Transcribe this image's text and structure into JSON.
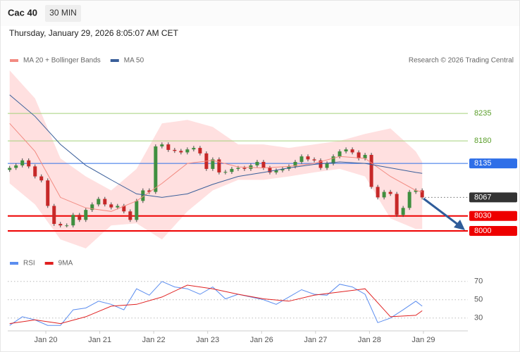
{
  "header": {
    "symbol": "Cac 40",
    "interval": "30 MIN",
    "timestamp": "Thursday, January 29, 2026 8:05:07 AM CET",
    "credit": "Research © 2026 Trading Central"
  },
  "chart_data": [
    {
      "type": "candlestick",
      "xlim": [
        -0.3,
        72.2
      ],
      "ylim": [
        7962,
        8328
      ],
      "up_color": "#3f8f3f",
      "down_color": "#c62828",
      "candles": {
        "open": [
          8122,
          8126,
          8131,
          8141,
          8129,
          8109,
          8101,
          8050,
          8014,
          8011,
          8011,
          8032,
          8022,
          8042,
          8053,
          8064,
          8053,
          8047,
          8050,
          8039,
          8022,
          8060,
          8081,
          8078,
          8169,
          8173,
          8162,
          8160,
          8157,
          8163,
          8166,
          8155,
          8124,
          8143,
          8117,
          8118,
          8124,
          8126,
          8124,
          8131,
          8138,
          8126,
          8117,
          8121,
          8124,
          8129,
          8138,
          8149,
          8143,
          8141,
          8126,
          8135,
          8149,
          8159,
          8163,
          8157,
          8145,
          8152,
          8088,
          8067,
          8078,
          8074,
          8032,
          8046,
          8078,
          8081
        ],
        "high": [
          8130,
          8135,
          8145,
          8145,
          8133,
          8113,
          8105,
          8054,
          8018,
          8015,
          8036,
          8036,
          8046,
          8057,
          8068,
          8068,
          8057,
          8054,
          8054,
          8043,
          8064,
          8085,
          8085,
          8173,
          8177,
          8177,
          8166,
          8164,
          8167,
          8170,
          8170,
          8159,
          8147,
          8147,
          8122,
          8128,
          8130,
          8130,
          8135,
          8142,
          8142,
          8130,
          8125,
          8128,
          8133,
          8142,
          8153,
          8153,
          8147,
          8145,
          8139,
          8153,
          8163,
          8167,
          8167,
          8161,
          8156,
          8156,
          8092,
          8082,
          8082,
          8078,
          8050,
          8082,
          8085,
          8085
        ],
        "low": [
          8118,
          8122,
          8127,
          8125,
          8105,
          8097,
          8046,
          8010,
          8007,
          8007,
          8007,
          8018,
          8018,
          8038,
          8049,
          8049,
          8043,
          8043,
          8035,
          8018,
          8018,
          8056,
          8074,
          8074,
          8165,
          8158,
          8156,
          8153,
          8153,
          8159,
          8151,
          8120,
          8120,
          8113,
          8113,
          8114,
          8120,
          8120,
          8120,
          8127,
          8122,
          8113,
          8113,
          8117,
          8120,
          8125,
          8134,
          8139,
          8137,
          8122,
          8122,
          8131,
          8145,
          8155,
          8153,
          8141,
          8141,
          8084,
          8063,
          8063,
          8070,
          8028,
          8028,
          8042,
          8074,
          8063
        ],
        "close": [
          8126,
          8131,
          8141,
          8129,
          8109,
          8101,
          8050,
          8014,
          8011,
          8011,
          8032,
          8022,
          8042,
          8053,
          8064,
          8053,
          8047,
          8050,
          8039,
          8022,
          8060,
          8081,
          8078,
          8169,
          8173,
          8162,
          8160,
          8157,
          8163,
          8166,
          8155,
          8124,
          8143,
          8117,
          8118,
          8124,
          8126,
          8124,
          8131,
          8138,
          8126,
          8117,
          8121,
          8124,
          8129,
          8138,
          8149,
          8143,
          8141,
          8126,
          8135,
          8149,
          8159,
          8163,
          8157,
          8145,
          8152,
          8088,
          8067,
          8078,
          8074,
          8032,
          8046,
          8078,
          8081,
          8067
        ]
      },
      "series": [
        {
          "name": "MA 20 + Bollinger Bands",
          "color": "#f28b82",
          "band_color": "#ffd6d6",
          "x": [
            0,
            4,
            8,
            12,
            16,
            20,
            24,
            28,
            32,
            36,
            40,
            44,
            48,
            52,
            56,
            60,
            64,
            65
          ],
          "values": [
            8215,
            8159,
            8067,
            8046,
            8039,
            8060,
            8095,
            8135,
            8141,
            8128,
            8126,
            8129,
            8135,
            8149,
            8145,
            8109,
            8081,
            8078
          ],
          "upper": [
            8321,
            8265,
            8145,
            8109,
            8081,
            8124,
            8215,
            8222,
            8208,
            8173,
            8173,
            8166,
            8173,
            8180,
            8194,
            8205,
            8159,
            8138
          ],
          "lower": [
            8095,
            8053,
            7983,
            7965,
            8011,
            8015,
            7983,
            8039,
            8081,
            8102,
            8102,
            8109,
            8117,
            8124,
            8109,
            8025,
            8004,
            8004
          ]
        },
        {
          "name": "MA 50",
          "color": "#3a5f9a",
          "x": [
            0,
            4,
            8,
            12,
            16,
            20,
            24,
            28,
            32,
            36,
            40,
            44,
            48,
            52,
            56,
            60,
            64,
            65
          ],
          "values": [
            8272,
            8229,
            8173,
            8131,
            8102,
            8074,
            8067,
            8074,
            8093,
            8109,
            8117,
            8126,
            8133,
            8138,
            8135,
            8126,
            8117,
            8115
          ]
        }
      ],
      "levels": [
        {
          "value": 8235,
          "color": "#a5d17a",
          "boxed": false,
          "style": "solid"
        },
        {
          "value": 8180,
          "color": "#a5d17a",
          "boxed": false,
          "style": "solid"
        },
        {
          "value": 8135,
          "color": "#2f6fe8",
          "boxed": true,
          "style": "solid"
        },
        {
          "value": 8067,
          "color": "#333333",
          "boxed": true,
          "style": "dotted"
        },
        {
          "value": 8030,
          "color": "#ee0000",
          "boxed": true,
          "style": "thick"
        },
        {
          "value": 8000,
          "color": "#ee0000",
          "boxed": true,
          "style": "thick"
        }
      ]
    },
    {
      "type": "line",
      "xlim": [
        -0.3,
        72.2
      ],
      "ylim": [
        16,
        76
      ],
      "yticks": [
        30,
        50,
        70
      ],
      "grid": true,
      "xticks": [
        {
          "value": 5.7,
          "label": "Jan 20"
        },
        {
          "value": 14.2,
          "label": "Jan 21"
        },
        {
          "value": 22.7,
          "label": "Jan 22"
        },
        {
          "value": 31.2,
          "label": "Jan 23"
        },
        {
          "value": 39.7,
          "label": "Jan 26"
        },
        {
          "value": 48.2,
          "label": "Jan 27"
        },
        {
          "value": 56.7,
          "label": "Jan 28"
        },
        {
          "value": 65.2,
          "label": "Jan 29"
        }
      ],
      "series": [
        {
          "name": "RSI",
          "color": "#5b8def",
          "x": [
            0,
            2,
            4,
            6,
            8,
            10,
            12,
            14,
            16,
            18,
            20,
            22,
            24,
            26,
            28,
            30,
            32,
            34,
            36,
            38,
            40,
            42,
            44,
            46,
            48,
            50,
            52,
            54,
            56,
            58,
            60,
            62,
            64,
            65
          ],
          "values": [
            22,
            31.5,
            28,
            22,
            22,
            39,
            41,
            48.5,
            45,
            39,
            62,
            55,
            70,
            64,
            62,
            56,
            64,
            51,
            56,
            53,
            50,
            45,
            53,
            61,
            56,
            55,
            67,
            64,
            56,
            25,
            30,
            39,
            48.5,
            43
          ]
        },
        {
          "name": "9MA",
          "color": "#e02020",
          "x": [
            0,
            4,
            8,
            12,
            16,
            20,
            24,
            28,
            32,
            36,
            40,
            44,
            48,
            52,
            56,
            60,
            64,
            65
          ],
          "values": [
            24,
            28,
            24,
            31.5,
            43,
            45,
            53,
            66,
            62,
            56,
            51,
            48.5,
            55,
            58.5,
            62,
            31.5,
            33,
            38
          ]
        }
      ]
    }
  ]
}
